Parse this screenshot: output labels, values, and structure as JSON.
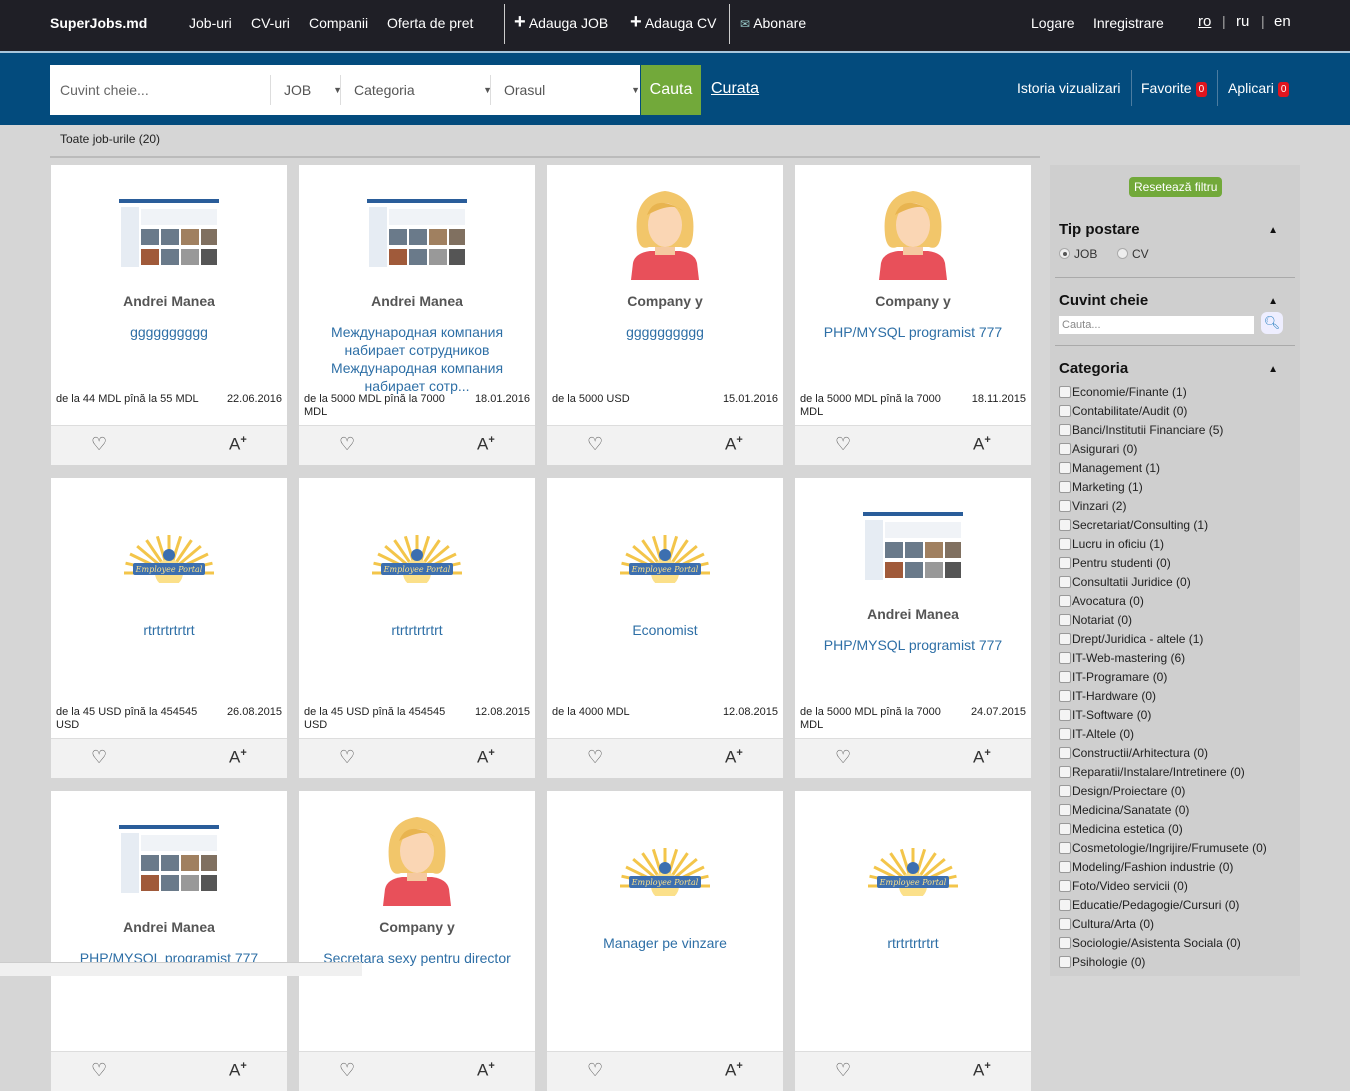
{
  "nav": {
    "logo": "SuperJobs.md",
    "links": [
      "Job-uri",
      "CV-uri",
      "Companii",
      "Oferta de pret"
    ],
    "add_job": "Adauga JOB",
    "add_cv": "Adauga CV",
    "subscribe": "Abonare",
    "login": "Logare",
    "register": "Inregistrare",
    "langs": [
      "ro",
      "ru",
      "en"
    ],
    "active_lang": "ro"
  },
  "search": {
    "placeholder": "Cuvint cheie...",
    "type": "JOB",
    "category": "Categoria",
    "city": "Orasul",
    "search_label": "Cauta",
    "clear_label": "Curata",
    "history": "Istoria vizualizari",
    "favorites": "Favorite",
    "favorites_count": "0",
    "applications": "Aplicari",
    "applications_count": "0"
  },
  "breadcrumb": "Toate job-urile (20)",
  "cards": [
    {
      "image": "screenshot",
      "company": "Andrei Manea",
      "title": "gggggggggg",
      "salary": "de la 44 MDL pînă la 55 MDL",
      "date": "22.06.2016"
    },
    {
      "image": "screenshot",
      "company": "Andrei Manea",
      "title": "Международная компания набирает сотрудников Международная компания набирает сотр...",
      "salary": "de la 5000 MDL pînă la 7000 MDL",
      "date": "18.01.2016"
    },
    {
      "image": "avatar",
      "company": "Company y",
      "title": "gggggggggg",
      "salary": "de la 5000 USD",
      "date": "15.01.2016"
    },
    {
      "image": "avatar",
      "company": "Company y",
      "title": "PHP/MYSQL programist 777",
      "salary": "de la 5000 MDL pînă la 7000 MDL",
      "date": "18.11.2015"
    },
    {
      "image": "logo",
      "company": "",
      "title": "rtrtrtrtrtrt",
      "salary": "de la 45 USD pînă la 454545 USD",
      "date": "26.08.2015"
    },
    {
      "image": "logo",
      "company": "",
      "title": "rtrtrtrtrtrt",
      "salary": "de la 45 USD pînă la 454545 USD",
      "date": "12.08.2015"
    },
    {
      "image": "logo",
      "company": "",
      "title": "Economist",
      "salary": "de la 4000 MDL",
      "date": "12.08.2015"
    },
    {
      "image": "screenshot",
      "company": "Andrei Manea",
      "title": "PHP/MYSQL programist 777",
      "salary": "de la 5000 MDL pînă la 7000 MDL",
      "date": "24.07.2015"
    },
    {
      "image": "screenshot",
      "company": "Andrei Manea",
      "title": "PHP/MYSQL programist 777",
      "salary": "",
      "date": ""
    },
    {
      "image": "avatar",
      "company": "Company y",
      "title": "Secretara sexy pentru director",
      "salary": "",
      "date": ""
    },
    {
      "image": "logo",
      "company": "",
      "title": "Manager pe vinzare",
      "salary": "",
      "date": ""
    },
    {
      "image": "logo",
      "company": "",
      "title": "rtrtrtrtrtrt",
      "salary": "",
      "date": ""
    }
  ],
  "logo_text": "Employee Portal",
  "sidebar": {
    "reset": "Resetează filtru",
    "type_title": "Tip postare",
    "type_options": [
      "JOB",
      "CV"
    ],
    "type_selected": "JOB",
    "keyword_title": "Cuvint cheie",
    "keyword_placeholder": "Cauta...",
    "category_title": "Categoria",
    "categories": [
      "Economie/Finante (1)",
      "Contabilitate/Audit (0)",
      "Banci/Institutii Financiare (5)",
      "Asigurari (0)",
      "Management (1)",
      "Marketing (1)",
      "Vinzari (2)",
      "Secretariat/Consulting (1)",
      "Lucru in oficiu (1)",
      "Pentru studenti (0)",
      "Consultatii Juridice (0)",
      "Avocatura (0)",
      "Notariat (0)",
      "Drept/Juridica - altele (1)",
      "IT-Web-mastering (6)",
      "IT-Programare (0)",
      "IT-Hardware (0)",
      "IT-Software (0)",
      "IT-Altele (0)",
      "Constructii/Arhitectura (0)",
      "Reparatii/Instalare/Intretinere (0)",
      "Design/Proiectare (0)",
      "Medicina/Sanatate (0)",
      "Medicina estetica (0)",
      "Cosmetologie/Ingrijire/Frumusete (0)",
      "Modeling/Fashion industrie (0)",
      "Foto/Video servicii (0)",
      "Educatie/Pedagogie/Cursuri (0)",
      "Cultura/Arta (0)",
      "Sociologie/Asistenta Sociala (0)",
      "Psihologie (0)"
    ]
  },
  "colors": {
    "topbar": "#1f1f26",
    "searchbar": "#034b7d",
    "accent_green": "#72a93a",
    "link": "#2e6fa6",
    "badge": "#e0141e"
  }
}
